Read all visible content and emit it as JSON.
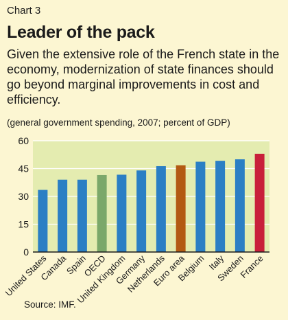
{
  "header": {
    "chart_number": "Chart 3",
    "title": "Leader of the pack",
    "subtitle": "Given the extensive role of the French state in the economy, modernization of state finances should go beyond marginal improvements in cost and efficiency.",
    "units": "(general government spending, 2007; percent of GDP)"
  },
  "footer": {
    "source": "Source: IMF."
  },
  "chart_data": {
    "type": "bar",
    "categories": [
      "United States",
      "Canada",
      "Spain",
      "OECD",
      "United Kingdom",
      "Germany",
      "Netherlands",
      "Euro area",
      "Belgium",
      "Italy",
      "Sweden",
      "France"
    ],
    "values": [
      33.5,
      39,
      39,
      41.5,
      41.7,
      44,
      46.3,
      46.8,
      48.7,
      49.2,
      50,
      53
    ],
    "bar_colors": [
      "#2b7fc4",
      "#2b7fc4",
      "#2b7fc4",
      "#7ba86a",
      "#2b7fc4",
      "#2b7fc4",
      "#2b7fc4",
      "#b35a12",
      "#2b7fc4",
      "#2b7fc4",
      "#2b7fc4",
      "#c8203a"
    ],
    "yticks": [
      0,
      15,
      30,
      45,
      60
    ],
    "ylim": [
      0,
      60
    ],
    "grid": true,
    "plot_background": "#e4ecb0"
  }
}
